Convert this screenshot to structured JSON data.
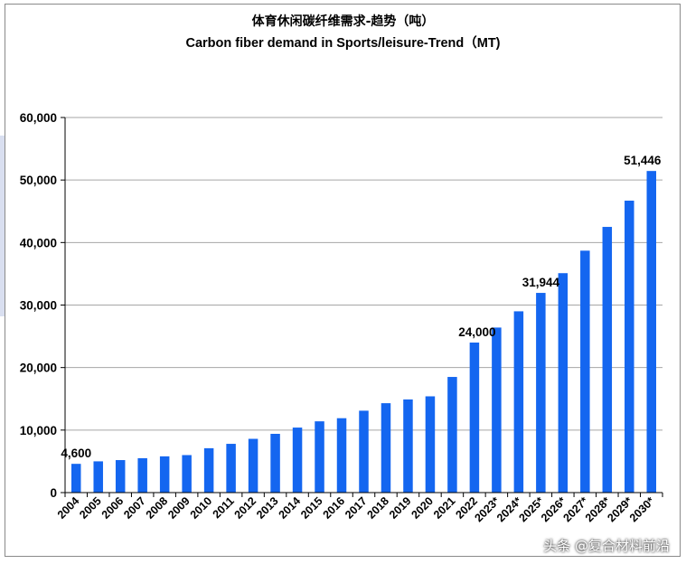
{
  "header": {
    "title_cn": "体育休闲碳纤维需求-趋势（吨）",
    "title_en": "Carbon fiber demand in Sports/leisure-Trend（MT)"
  },
  "watermark": "头条 @复合材料前沿",
  "colors": {
    "bar": "#1466f0",
    "grid": "#a6a6a6",
    "axis": "#000000"
  },
  "chart_data": {
    "type": "bar",
    "title": "体育休闲碳纤维需求-趋势（吨） Carbon fiber demand in Sports/leisure-Trend（MT)",
    "xlabel": "",
    "ylabel": "",
    "ylim": [
      0,
      60000
    ],
    "yticks": [
      0,
      10000,
      20000,
      30000,
      40000,
      50000,
      60000
    ],
    "ytick_labels": [
      "0",
      "10,000",
      "20,000",
      "30,000",
      "40,000",
      "50,000",
      "60,000"
    ],
    "grid": true,
    "legend": "none",
    "categories": [
      "2004",
      "2005",
      "2006",
      "2007",
      "2008",
      "2009",
      "2010",
      "2011",
      "2012",
      "2013",
      "2014",
      "2015",
      "2016",
      "2017",
      "2018",
      "2019",
      "2020",
      "2021",
      "2022",
      "2023*",
      "2024*",
      "2025*",
      "2026*",
      "2027*",
      "2028*",
      "2029*",
      "2030*"
    ],
    "values": [
      4600,
      5000,
      5200,
      5500,
      5800,
      6000,
      7100,
      7800,
      8600,
      9400,
      10400,
      11400,
      11900,
      13100,
      14300,
      14900,
      15400,
      18500,
      24000,
      26400,
      29000,
      31944,
      35100,
      38700,
      42500,
      46700,
      51446
    ],
    "data_labels": [
      {
        "index": 0,
        "text": "4,600"
      },
      {
        "index": 18,
        "text": "24,000"
      },
      {
        "index": 21,
        "text": "31,944"
      },
      {
        "index": 26,
        "text": "51,446"
      }
    ]
  }
}
